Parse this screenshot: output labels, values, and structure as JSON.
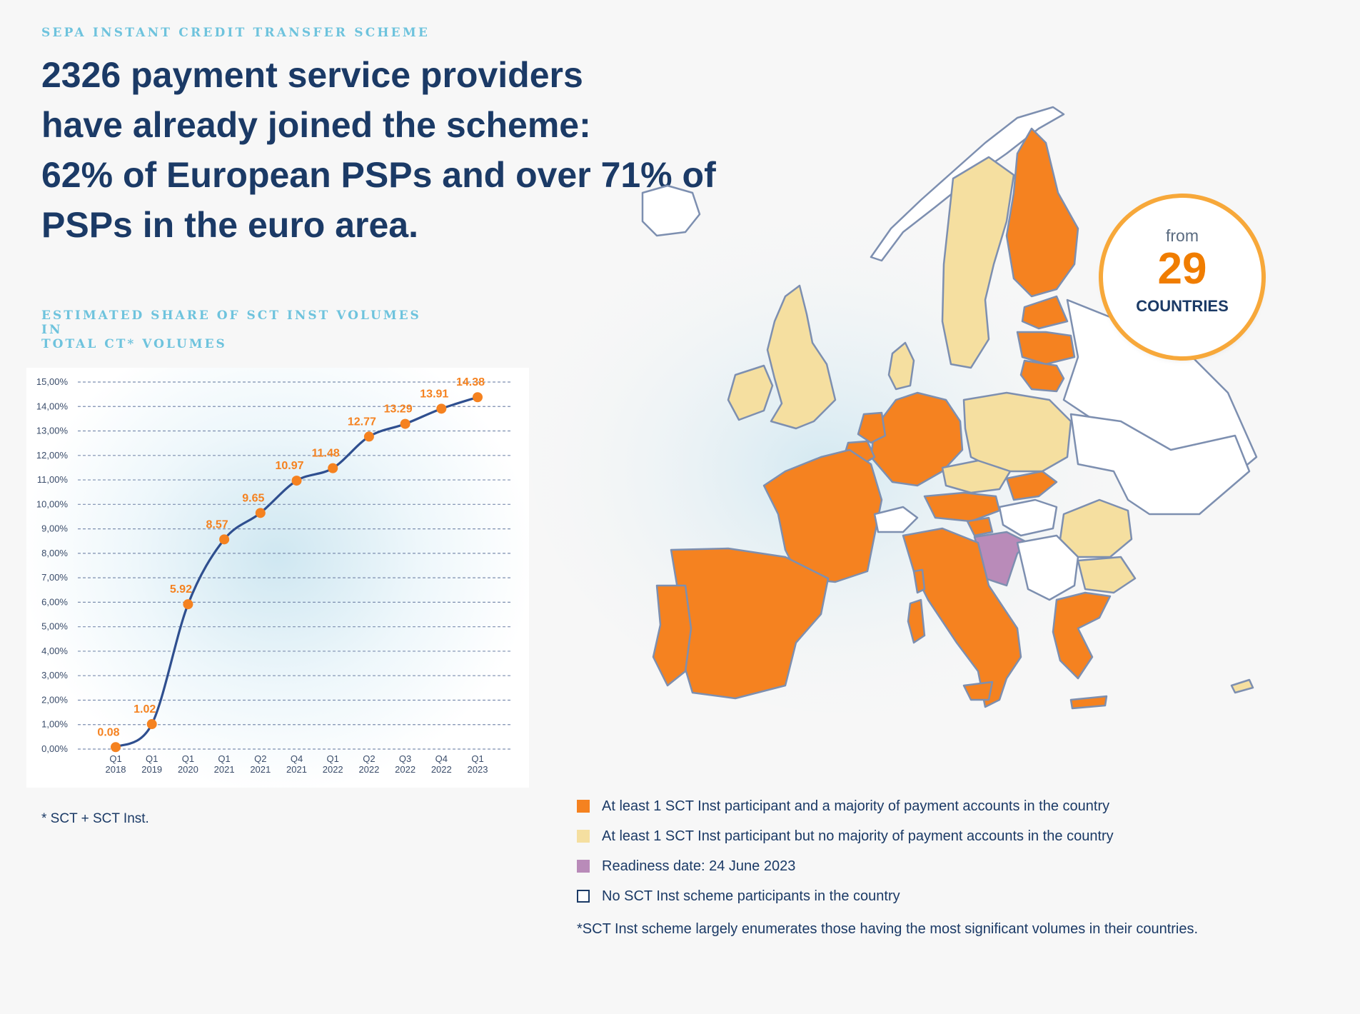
{
  "header": {
    "eyebrow": "SEPA INSTANT CREDIT TRANSFER SCHEME",
    "headline_lines": [
      "2326 payment service providers",
      "have already joined the scheme:",
      "62% of European PSPs and over 71% of",
      "PSPs in the euro area."
    ]
  },
  "chart_title_lines": [
    "ESTIMATED SHARE OF SCT INST VOLUMES IN",
    "TOTAL CT* VOLUMES"
  ],
  "chart_data": {
    "type": "line",
    "title": "ESTIMATED SHARE OF SCT INST VOLUMES IN TOTAL CT* VOLUMES",
    "xlabel": "",
    "ylabel": "",
    "x": [
      "Q1 2018",
      "Q1 2019",
      "Q1 2020",
      "Q1 2021",
      "Q2 2021",
      "Q4 2021",
      "Q1 2022",
      "Q2 2022",
      "Q3 2022",
      "Q4 2022",
      "Q1 2023"
    ],
    "x_tick_lines": [
      [
        "Q1",
        "2018"
      ],
      [
        "Q1",
        "2019"
      ],
      [
        "Q1",
        "2020"
      ],
      [
        "Q1",
        "2021"
      ],
      [
        "Q2",
        "2021"
      ],
      [
        "Q4",
        "2021"
      ],
      [
        "Q1",
        "2022"
      ],
      [
        "Q2",
        "2022"
      ],
      [
        "Q3",
        "2022"
      ],
      [
        "Q4",
        "2022"
      ],
      [
        "Q1",
        "2023"
      ]
    ],
    "values": [
      0.08,
      1.02,
      5.92,
      8.57,
      9.65,
      10.97,
      11.48,
      12.77,
      13.29,
      13.91,
      14.38
    ],
    "data_labels": [
      "0.08",
      "1.02",
      "5.92",
      "8.57",
      "9.65",
      "10.97",
      "11.48",
      "12.77",
      "13.29",
      "13.91",
      "14.38"
    ],
    "y_tick_labels": [
      "0,00%",
      "1,00%",
      "2,00%",
      "3,00%",
      "4,00%",
      "5,00%",
      "6,00%",
      "7,00%",
      "8,00%",
      "9,00%",
      "10,00%",
      "11,00%",
      "12,00%",
      "13,00%",
      "14,00%",
      "15,00%"
    ],
    "ylim": [
      0,
      15
    ],
    "grid": true,
    "colors": {
      "line": "#2f4f8f",
      "points": "#f58220",
      "labels": "#f58220",
      "grid": "#7d8fb0"
    }
  },
  "chart_footnote": "* SCT + SCT Inst.",
  "badge": {
    "from": "from",
    "number": "29",
    "countries": "COUNTRIES"
  },
  "legend": [
    {
      "label": "At least 1 SCT Inst participant and a majority of payment accounts in the country",
      "color": "#f58220"
    },
    {
      "label": "At least 1 SCT Inst participant but no majority of payment accounts in the country",
      "color": "#f5dfa0"
    },
    {
      "label": "Readiness date: 24 June 2023",
      "color": "#b98bb9"
    },
    {
      "label": "No SCT Inst scheme participants in the country",
      "color": "#ffffff"
    }
  ],
  "map_note": "*SCT Inst scheme largely enumerates those having the most significant volumes in their countries.",
  "map_colors": {
    "majority": "#f58220",
    "minority": "#f5dfa0",
    "readiness": "#b98bb9",
    "none": "#ffffff",
    "border": "#7d8fb0"
  }
}
